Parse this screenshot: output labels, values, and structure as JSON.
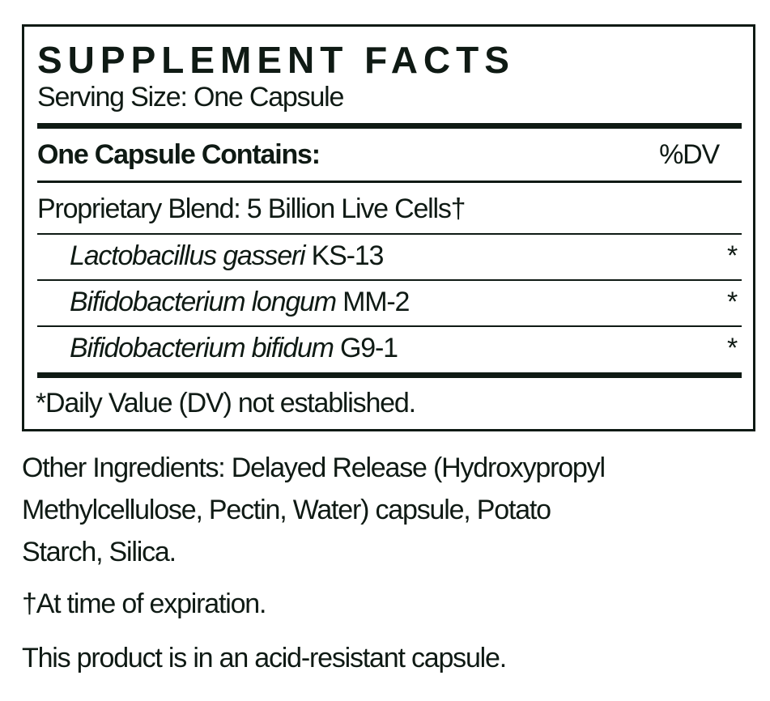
{
  "panel": {
    "title": "SUPPLEMENT FACTS",
    "serving_size": "Serving Size: One Capsule",
    "header_left": "One Capsule Contains:",
    "header_right": "%DV",
    "blend": "Proprietary Blend: 5 Billion Live Cells†",
    "ingredients": [
      {
        "species": "Lactobacillus gasseri",
        "strain": " KS-13",
        "dv": "*"
      },
      {
        "species": "Bifidobacterium longum",
        "strain": " MM-2",
        "dv": "*"
      },
      {
        "species": "Bifidobacterium bifidum",
        "strain": " G9-1",
        "dv": "*"
      }
    ],
    "footnote": "*Daily Value (DV) not established."
  },
  "other_ingredients": {
    "lines": [
      "Other Ingredients: Delayed Release (Hydroxypropyl",
      "Methylcellulose, Pectin, Water) capsule, Potato",
      "Starch, Silica."
    ]
  },
  "expiration_note": "†At time of expiration.",
  "capsule_note": "This product is in an acid-resistant capsule."
}
